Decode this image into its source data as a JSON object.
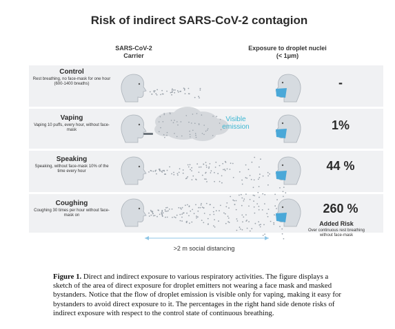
{
  "figure": {
    "title": "Risk of indirect SARS-CoV-2 contagion",
    "carrier_header": "SARS-CoV-2\nCarrier",
    "exposure_header": "Exposure to droplet nuclei\n(< 1μm)",
    "visible_emission": "Visible\nemission",
    "distance_label": ">2 m social distancing",
    "added_risk_title": "Added Risk",
    "added_risk_desc": "Over continuous rest breathing without face-mask",
    "rows": [
      {
        "title": "Control",
        "desc": "Rest breathing, no face-mask for one hour (600-1400 breaths)",
        "risk": "-"
      },
      {
        "title": "Vaping",
        "desc": "Vaping 10 puffs, every hour, without face-mask",
        "risk": "1%"
      },
      {
        "title": "Speaking",
        "desc": "Speaking, without face-mask 10% of the time every hour",
        "risk": "44 %"
      },
      {
        "title": "Coughing",
        "desc": "Coughing 30 times per hour without face-mask on",
        "risk": "260 %"
      }
    ],
    "colors": {
      "mask": "#4aa8d8",
      "head": "#d6dbe0",
      "panel": "#f0f1f3",
      "accent": "#3bb6d1"
    }
  },
  "caption": {
    "label": "Figure 1.",
    "text": " Direct and indirect exposure to various respiratory activities. The figure displays a sketch of the area of direct exposure for droplet emitters not wearing a face mask and masked bystanders. Notice that the flow of droplet emission is visible only for vaping, making it easy for bystanders to avoid direct exposure to it. The percentages in the right hand side denote risks of indirect exposure with respect to the control state of continuous breathing."
  }
}
